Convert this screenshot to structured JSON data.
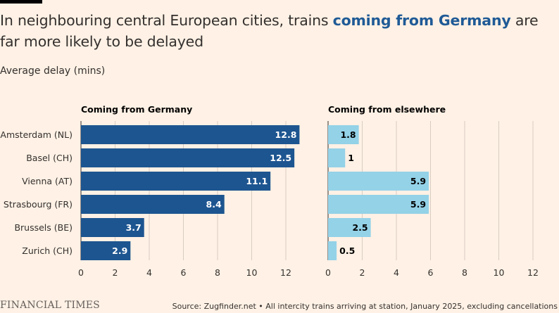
{
  "header": {
    "title_part1": "In neighbouring central European cities, trains ",
    "title_highlight": "coming from Germany",
    "title_part2": " are far more likely to be delayed",
    "subtitle": "Average delay (mins)"
  },
  "footer": {
    "brand": "FINANCIAL TIMES",
    "source": "Source: Zugfinder.net • All intercity trains arriving at station, January 2025, excluding cancellations"
  },
  "colors": {
    "germany": "#1d5590",
    "elsewhere": "#94d2e8",
    "grid": "#d8ccc2",
    "label_light": "#ffffff",
    "label_dark": "#000000"
  },
  "chart_data": [
    {
      "type": "bar",
      "orientation": "horizontal",
      "title": "Coming from Germany",
      "categories": [
        "Amsterdam (NL)",
        "Basel (CH)",
        "Vienna (AT)",
        "Strasbourg (FR)",
        "Brussels (BE)",
        "Zurich (CH)"
      ],
      "values": [
        12.8,
        12.5,
        11.1,
        8.4,
        3.7,
        2.9
      ],
      "value_labels": [
        "12.8",
        "12.5",
        "11.1",
        "8.4",
        "3.7",
        "2.9"
      ],
      "xlim": [
        0,
        13
      ],
      "xticks": [
        0,
        2,
        4,
        6,
        8,
        10,
        12
      ],
      "xlabel": "",
      "ylabel": "Average delay (mins)",
      "grid": true
    },
    {
      "type": "bar",
      "orientation": "horizontal",
      "title": "Coming from elsewhere",
      "categories": [
        "Amsterdam (NL)",
        "Basel (CH)",
        "Vienna (AT)",
        "Strasbourg (FR)",
        "Brussels (BE)",
        "Zurich (CH)"
      ],
      "values": [
        1.8,
        1,
        5.9,
        5.9,
        2.5,
        0.5
      ],
      "value_labels": [
        "1.8",
        "1",
        "5.9",
        "5.9",
        "2.5",
        "0.5"
      ],
      "xlim": [
        0,
        13
      ],
      "xticks": [
        0,
        2,
        4,
        6,
        8,
        10,
        12
      ],
      "xlabel": "",
      "ylabel": "Average delay (mins)",
      "grid": true
    }
  ]
}
